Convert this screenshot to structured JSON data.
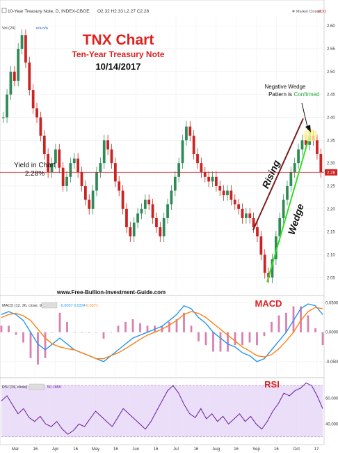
{
  "header": {
    "symbol_line": "10-Year Treasury Note, D, INDEX-CBOE",
    "ohlc": "O2.32  H2.33  L2.27  C2.28",
    "market_status": "Market Closed",
    "market_badge": "EOD",
    "vol_label": "Vol (20)",
    "vol_value": "n/a  n/a"
  },
  "annotations": {
    "title": "TNX Chart",
    "subtitle": "Ten-Year Treasury Note",
    "date": "10/14/2017",
    "yield_label": "Yield in Chart",
    "yield_value": "2.28%",
    "wedge_note_1": "Negative Wedge",
    "wedge_note_2": "Pattern is",
    "wedge_note_3": "Confirmed",
    "rising": "Rising",
    "wedge": "Wedge",
    "website": "www.Free-Bullion-Investment-Guide.com",
    "macd": "MACD",
    "rsi": "RSI"
  },
  "macd_panel": {
    "label": "MACD (12, 26, close, 9)",
    "v1": "-0.0037",
    "v2": "0.0334",
    "v3": "0.0371"
  },
  "rsi_panel": {
    "label": "RSI (14, close)",
    "value": "50.1855"
  },
  "colors": {
    "title_red": "#e02020",
    "wedge_dark": "#7a1a1a",
    "wedge_green": "#33dd22",
    "candle_up": "#2e8b57",
    "candle_down": "#cc2222",
    "macd_line": "#2196f3",
    "signal_line": "#ff7f0e",
    "hist": "#d060a0",
    "rsi_line": "#6a1b9a",
    "rsi_band": "#e6d6f7",
    "confirmed_green": "#22aa33",
    "last_price_bg": "#cc2222"
  },
  "chart_data": [
    {
      "type": "candlestick",
      "title": "10-Year Treasury Note, D, INDEX-CBOE",
      "ylim": [
        2.02,
        2.62
      ],
      "y_ticks": [
        2.05,
        2.1,
        2.15,
        2.2,
        2.25,
        2.3,
        2.35,
        2.4,
        2.45,
        2.5,
        2.55,
        2.6
      ],
      "last_price": 2.28,
      "x_ticks": [
        "Mar",
        "16",
        "Apr",
        "16",
        "May",
        "16",
        "Jun",
        "16",
        "Jul",
        "16",
        "Aug",
        "16",
        "Sep",
        "16",
        "Oct",
        "17"
      ],
      "close": [
        2.4,
        2.45,
        2.5,
        2.48,
        2.55,
        2.58,
        2.52,
        2.46,
        2.42,
        2.4,
        2.36,
        2.32,
        2.28,
        2.3,
        2.33,
        2.29,
        2.25,
        2.27,
        2.3,
        2.31,
        2.28,
        2.25,
        2.22,
        2.2,
        2.24,
        2.28,
        2.3,
        2.35,
        2.33,
        2.3,
        2.26,
        2.24,
        2.2,
        2.16,
        2.14,
        2.17,
        2.19,
        2.2,
        2.22,
        2.21,
        2.18,
        2.16,
        2.14,
        2.18,
        2.21,
        2.24,
        2.27,
        2.3,
        2.35,
        2.38,
        2.36,
        2.32,
        2.3,
        2.28,
        2.27,
        2.26,
        2.27,
        2.25,
        2.24,
        2.23,
        2.24,
        2.22,
        2.21,
        2.2,
        2.18,
        2.19,
        2.18,
        2.16,
        2.14,
        2.1,
        2.06,
        2.05,
        2.09,
        2.14,
        2.18,
        2.22,
        2.25,
        2.28,
        2.3,
        2.33,
        2.35,
        2.34,
        2.36,
        2.35,
        2.32,
        2.28
      ]
    },
    {
      "type": "line",
      "title": "MACD (12, 26, close, 9)",
      "ylim": [
        -0.075,
        0.06
      ],
      "y_ticks": [
        0.05,
        0,
        -0.05
      ],
      "series": [
        {
          "name": "MACD",
          "values": [
            0.03,
            0.035,
            0.03,
            0.02,
            0.0,
            -0.02,
            -0.03,
            -0.02,
            -0.01,
            -0.02,
            -0.03,
            -0.035,
            -0.04,
            -0.045,
            -0.05,
            -0.04,
            -0.03,
            -0.02,
            -0.01,
            -0.005,
            0.0,
            0.005,
            0.01,
            0.02,
            0.03,
            0.045,
            0.04,
            0.025,
            0.015,
            0.0,
            -0.01,
            -0.02,
            -0.025,
            -0.035,
            -0.04,
            -0.05,
            -0.045,
            -0.03,
            -0.015,
            0.0,
            0.02,
            0.04,
            0.048,
            0.045,
            0.03
          ]
        },
        {
          "name": "Signal",
          "values": [
            0.025,
            0.03,
            0.032,
            0.028,
            0.02,
            0.005,
            -0.01,
            -0.02,
            -0.025,
            -0.028,
            -0.03,
            -0.035,
            -0.04,
            -0.045,
            -0.045,
            -0.04,
            -0.035,
            -0.028,
            -0.02,
            -0.012,
            -0.005,
            0.0,
            0.005,
            0.012,
            0.02,
            0.03,
            0.035,
            0.032,
            0.025,
            0.015,
            0.005,
            -0.005,
            -0.015,
            -0.025,
            -0.032,
            -0.04,
            -0.042,
            -0.038,
            -0.028,
            -0.015,
            0.0,
            0.02,
            0.035,
            0.042,
            0.04
          ]
        }
      ]
    },
    {
      "type": "line",
      "title": "RSI (14, close)",
      "ylim": [
        25,
        75
      ],
      "y_ticks": [
        60,
        40
      ],
      "band": [
        30,
        70
      ],
      "series": [
        {
          "name": "RSI",
          "values": [
            58,
            62,
            55,
            48,
            52,
            45,
            42,
            46,
            40,
            38,
            42,
            36,
            32,
            35,
            40,
            38,
            44,
            50,
            46,
            42,
            38,
            45,
            52,
            48,
            44,
            40,
            36,
            42,
            50,
            58,
            66,
            70,
            64,
            55,
            48,
            45,
            52,
            44,
            48,
            42,
            46,
            40,
            44,
            48,
            42,
            46,
            40,
            36,
            42,
            50,
            56,
            64,
            62,
            66,
            68,
            72,
            70,
            62,
            52
          ]
        }
      ]
    }
  ]
}
